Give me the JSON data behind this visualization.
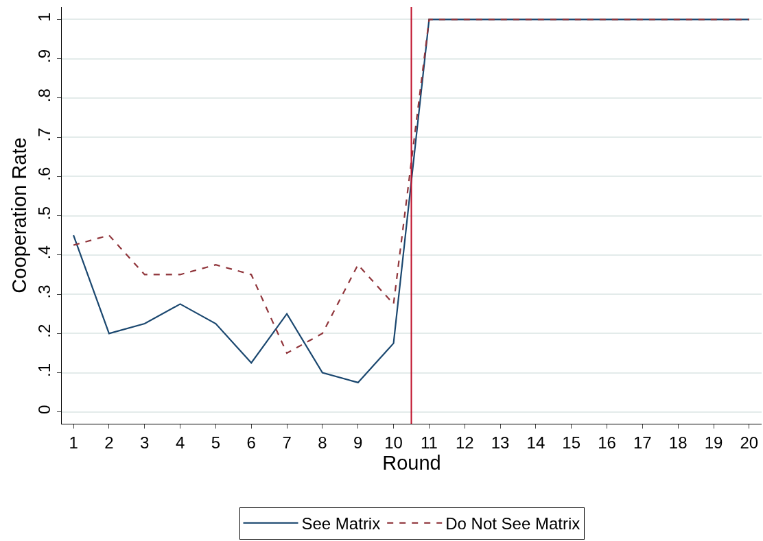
{
  "chart_data": {
    "type": "line",
    "xlabel": "Round",
    "ylabel": "Cooperation Rate",
    "x": [
      1,
      2,
      3,
      4,
      5,
      6,
      7,
      8,
      9,
      10,
      11,
      12,
      13,
      14,
      15,
      16,
      17,
      18,
      19,
      20
    ],
    "series": [
      {
        "name": "See Matrix",
        "color": "#1a476f",
        "line_style": "solid",
        "values": [
          0.45,
          0.2,
          0.225,
          0.275,
          0.225,
          0.125,
          0.25,
          0.1,
          0.075,
          0.175,
          1,
          1,
          1,
          1,
          1,
          1,
          1,
          1,
          1,
          1
        ]
      },
      {
        "name": "Do Not See Matrix",
        "color": "#90353b",
        "line_style": "dashed",
        "values": [
          0.425,
          0.45,
          0.35,
          0.35,
          0.375,
          0.35,
          0.15,
          0.2,
          0.375,
          0.275,
          1,
          1,
          1,
          1,
          1,
          1,
          1,
          1,
          1,
          1
        ]
      }
    ],
    "xlim": [
      0.67,
      20.35
    ],
    "xticks": [
      1,
      2,
      3,
      4,
      5,
      6,
      7,
      8,
      9,
      10,
      11,
      12,
      13,
      14,
      15,
      16,
      17,
      18,
      19,
      20
    ],
    "ylim": [
      -0.03,
      1.032
    ],
    "yticks": [
      {
        "value": 0,
        "label": "0"
      },
      {
        "value": 0.1,
        "label": ".1"
      },
      {
        "value": 0.2,
        "label": ".2"
      },
      {
        "value": 0.3,
        "label": ".3"
      },
      {
        "value": 0.4,
        "label": ".4"
      },
      {
        "value": 0.5,
        "label": ".5"
      },
      {
        "value": 0.6,
        "label": ".6"
      },
      {
        "value": 0.7,
        "label": ".7"
      },
      {
        "value": 0.8,
        "label": ".8"
      },
      {
        "value": 0.9,
        "label": ".9"
      },
      {
        "value": 1,
        "label": "1"
      }
    ],
    "ref_lines": [
      {
        "axis": "x",
        "value": 10.5,
        "color": "#c0102a"
      }
    ],
    "grid": "y",
    "legend": "bottom",
    "marker": "none"
  }
}
